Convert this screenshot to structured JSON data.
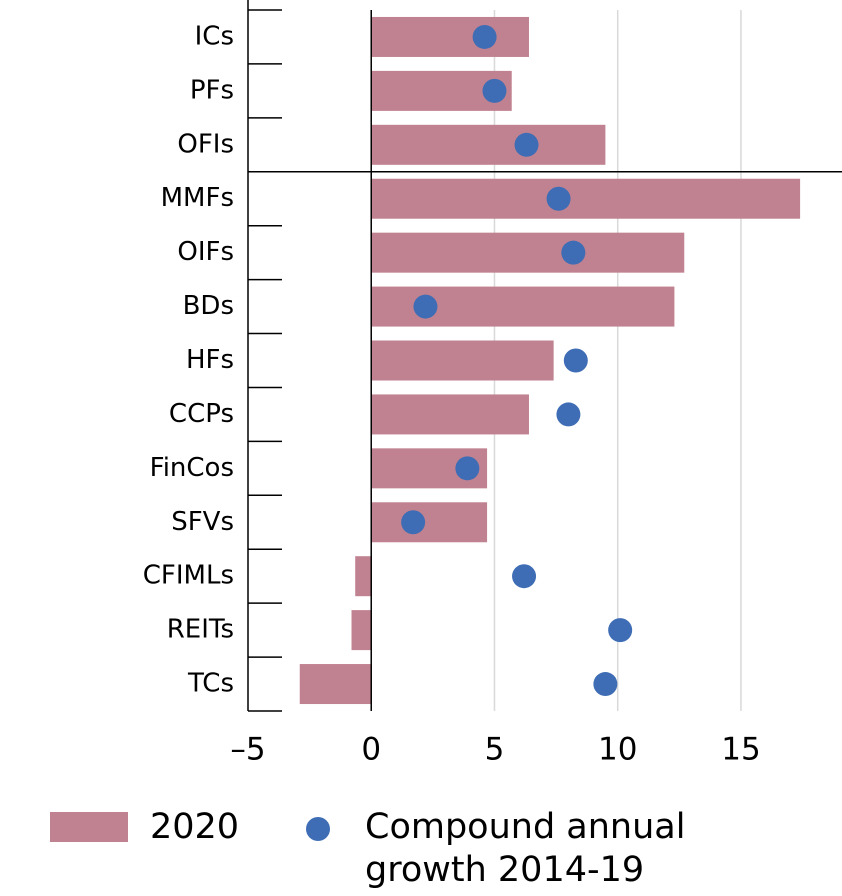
{
  "chart_data": {
    "type": "bar",
    "categories": [
      "ICs",
      "PFs",
      "OFIs",
      "MMFs",
      "OIFs",
      "BDs",
      "HFs",
      "CCPs",
      "FinCos",
      "SFVs",
      "CFIMLs",
      "REITs",
      "TCs"
    ],
    "series": [
      {
        "name": "2020",
        "type": "bar",
        "color": "#c08290",
        "values": [
          6.4,
          5.7,
          9.5,
          17.4,
          12.7,
          12.3,
          7.4,
          6.4,
          4.7,
          4.7,
          -0.65,
          -0.8,
          -2.9
        ]
      },
      {
        "name": "Compound annual growth 2014-19",
        "type": "scatter",
        "color": "#3e6db5",
        "values": [
          4.6,
          5.0,
          6.3,
          7.6,
          8.2,
          2.2,
          8.3,
          8.0,
          3.9,
          1.7,
          6.2,
          10.1,
          9.5
        ]
      }
    ],
    "xlim": [
      -5,
      19.1
    ],
    "xticks": [
      {
        "value": -5,
        "label": "–5"
      },
      0,
      5,
      10,
      15
    ],
    "grid": true
  }
}
